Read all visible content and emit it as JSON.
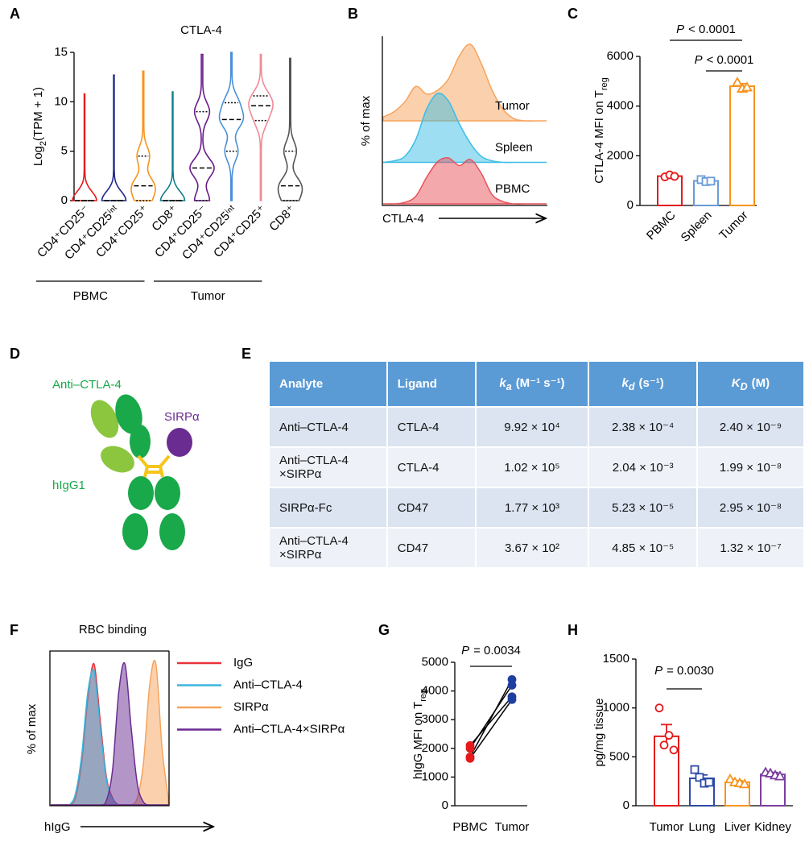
{
  "panel_labels": [
    "A",
    "B",
    "C",
    "D",
    "E",
    "F",
    "G",
    "H"
  ],
  "chart_data": [
    {
      "type": "violin",
      "title": "CTLA-4",
      "ylabel": {
        "text": "Log",
        "sub": "2",
        "after": "(TPM + 1)"
      },
      "ylim": [
        0,
        15
      ],
      "yticks": [
        0,
        5,
        10,
        15
      ],
      "groups": [
        {
          "name": "PBMC",
          "violins": [
            {
              "category": "CD4⁺CD25⁻",
              "color": "#e41a1c",
              "max": 10.8,
              "median": 0,
              "q1": 0,
              "q3": 0
            },
            {
              "category": "CD4⁺CD25ⁱⁿᵗ",
              "color": "#1f2a8a",
              "max": 12.7,
              "median": 0,
              "q1": 0,
              "q3": 0
            },
            {
              "category": "CD4⁺CD25⁺",
              "color": "#f7941d",
              "max": 13.1,
              "median": 1.5,
              "q1": 0,
              "q3": 4.5
            },
            {
              "category": "CD8⁺",
              "color": "#137e8a",
              "max": 11,
              "median": 0,
              "q1": 0,
              "q3": 0
            }
          ]
        },
        {
          "name": "Tumor",
          "violins": [
            {
              "category": "CD4⁺CD25⁻",
              "color": "#6a1b8a",
              "max": 14.8,
              "median": 3.3,
              "q1": 0,
              "q3": 9
            },
            {
              "category": "CD4⁺CD25ⁱⁿᵗ",
              "color": "#4a90d9",
              "max": 15,
              "median": 8.2,
              "q1": 5,
              "q3": 9.9
            },
            {
              "category": "CD4⁺CD25⁺",
              "color": "#f08a96",
              "max": 14.8,
              "median": 9.6,
              "q1": 8.1,
              "q3": 10.6
            },
            {
              "category": "CD8⁺",
              "color": "#555555",
              "max": 14.4,
              "median": 1.5,
              "q1": 0,
              "q3": 5
            }
          ]
        }
      ]
    },
    {
      "type": "flow",
      "stacked": true,
      "ylabel": "% of max",
      "xlabel": "CTLA-4",
      "series": [
        {
          "name": "Tumor",
          "color": "#f7a35c",
          "values": [
            5,
            12,
            25,
            45,
            35,
            40,
            55,
            85,
            100,
            75,
            40,
            15,
            3,
            0,
            0,
            0
          ]
        },
        {
          "name": "Spleen",
          "color": "#3cbde6",
          "values": [
            0,
            2,
            8,
            30,
            70,
            90,
            80,
            50,
            25,
            8,
            2,
            0,
            0,
            0,
            0,
            0
          ]
        },
        {
          "name": "PBMC",
          "color": "#e8525a",
          "values": [
            0,
            0,
            2,
            10,
            35,
            55,
            60,
            50,
            58,
            40,
            12,
            3,
            0,
            0,
            0,
            0
          ]
        }
      ]
    },
    {
      "type": "bar",
      "ylabel": {
        "text": "CTLA-4 MFI on T",
        "sub": "reg"
      },
      "ylim": [
        0,
        6000
      ],
      "yticks": [
        0,
        2000,
        4000,
        6000
      ],
      "categories": [
        "PBMC",
        "Spleen",
        "Tumor"
      ],
      "colors": [
        "#e41a1c",
        "#6a9bd8",
        "#f7941d"
      ],
      "markers": [
        "circle",
        "square",
        "triangle"
      ],
      "values": [
        1180,
        990,
        4800
      ],
      "errors": [
        50,
        40,
        100
      ],
      "points": [
        [
          1150,
          1230,
          1170
        ],
        [
          1040,
          960,
          980
        ],
        [
          4950,
          4700,
          4750
        ]
      ],
      "annotations": [
        {
          "symbol": "P",
          "text": "< 0.0001"
        },
        {
          "symbol": "P",
          "text": "< 0.0001"
        }
      ]
    },
    {
      "type": "flow",
      "stacked": false,
      "title": "RBC binding",
      "ylabel": "% of max",
      "xlabel": "hIgG",
      "legend": true,
      "series": [
        {
          "name": "IgG",
          "color": "#e8323a",
          "values": [
            0,
            0,
            0,
            0,
            5,
            30,
            75,
            100,
            60,
            20,
            5,
            0,
            0,
            0,
            0,
            0,
            0,
            0,
            0,
            0
          ]
        },
        {
          "name": "Anti–CTLA-4",
          "color": "#3cb4e0",
          "values": [
            0,
            0,
            0,
            0,
            8,
            35,
            80,
            95,
            55,
            18,
            4,
            0,
            0,
            0,
            0,
            0,
            0,
            0,
            0,
            0
          ]
        },
        {
          "name": "SIRPα",
          "color": "#f7a35c",
          "values": [
            0,
            0,
            0,
            0,
            0,
            0,
            0,
            0,
            0,
            0,
            0,
            0,
            0,
            0,
            5,
            30,
            85,
            100,
            40,
            5
          ]
        },
        {
          "name": "Anti–CTLA-4×SIRPα",
          "color": "#6a2c91",
          "values": [
            0,
            0,
            0,
            0,
            0,
            0,
            0,
            0,
            0,
            3,
            25,
            80,
            100,
            55,
            15,
            2,
            0,
            0,
            0,
            0
          ]
        }
      ]
    },
    {
      "type": "paired",
      "ylabel": {
        "text": "hIgG MFI on T",
        "sub": "reg"
      },
      "ylim": [
        0,
        5000
      ],
      "yticks": [
        0,
        1000,
        2000,
        3000,
        4000,
        5000
      ],
      "categories": [
        "PBMC",
        "Tumor"
      ],
      "colors": [
        "#e41a1c",
        "#1f3fa0"
      ],
      "pairs": [
        [
          2100,
          3800
        ],
        [
          2000,
          4200
        ],
        [
          1700,
          4400
        ],
        [
          1650,
          3700
        ]
      ],
      "annotations": [
        {
          "symbol": "P",
          "text": "= 0.0034"
        }
      ]
    },
    {
      "type": "bar",
      "ylabel": "pg/mg tissue",
      "ylim": [
        0,
        1500
      ],
      "yticks": [
        0,
        500,
        1000,
        1500
      ],
      "categories": [
        "Tumor",
        "Lung",
        "Liver",
        "Kidney"
      ],
      "colors": [
        "#e41a1c",
        "#2c4aa8",
        "#f7941d",
        "#7b3fa0"
      ],
      "markers": [
        "circle",
        "square",
        "triangle",
        "triangle"
      ],
      "values": [
        710,
        280,
        240,
        320
      ],
      "errors": [
        120,
        35,
        15,
        20
      ],
      "points": [
        [
          1000,
          620,
          720,
          570
        ],
        [
          370,
          290,
          230,
          240
        ],
        [
          270,
          240,
          230,
          220
        ],
        [
          340,
          330,
          310,
          300
        ]
      ],
      "annotations": [
        {
          "symbol": "P",
          "text": "= 0.0030"
        }
      ]
    }
  ],
  "diagram": {
    "labels": [
      "Anti–CTLA-4",
      "SIRPα",
      "hIgG1"
    ]
  },
  "table": {
    "header": [
      "Analyte",
      "Ligand",
      {
        "symbol": "k",
        "sub": "a",
        "unit": "(M⁻¹ s⁻¹)"
      },
      {
        "symbol": "k",
        "sub": "d",
        "unit": "(s⁻¹)"
      },
      {
        "symbol": "K",
        "sub": "D",
        "unit": "(M)"
      }
    ],
    "rows": [
      [
        "Anti–CTLA-4",
        "CTLA-4",
        "9.92 × 10⁴",
        "2.38 × 10⁻⁴",
        "2.40 × 10⁻⁹"
      ],
      [
        "Anti–CTLA-4 ×SIRPα",
        "CTLA-4",
        "1.02 × 10⁵",
        "2.04 × 10⁻³",
        "1.99 × 10⁻⁸"
      ],
      [
        "SIRPα-Fc",
        "CD47",
        "1.77 × 10³",
        "5.23 × 10⁻⁵",
        "2.95 × 10⁻⁸"
      ],
      [
        "Anti–CTLA-4 ×SIRPα",
        "CD47",
        "3.67 × 10²",
        "4.85 × 10⁻⁵",
        "1.32 × 10⁻⁷"
      ]
    ]
  }
}
